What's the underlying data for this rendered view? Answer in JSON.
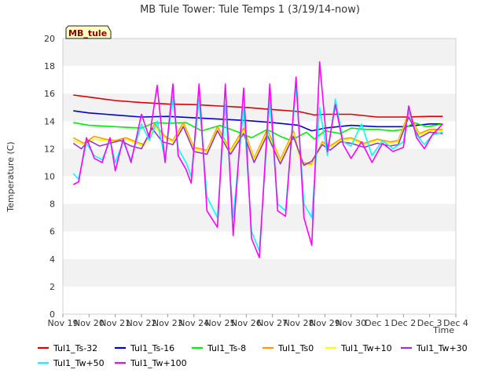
{
  "chart_data": {
    "type": "line",
    "title": "MB Tule Tower: Tule Temps 1 (3/19/14-now)",
    "xlabel": "Time",
    "ylabel": "Temperature (C)",
    "ylim": [
      0,
      20
    ],
    "yticks": [
      0,
      2,
      4,
      6,
      8,
      10,
      12,
      14,
      16,
      18,
      20
    ],
    "xlim": [
      0,
      15
    ],
    "xtick_labels": [
      "Nov 19",
      "Nov 20",
      "Nov 21",
      "Nov 22",
      "Nov 23",
      "Nov 24",
      "Nov 25",
      "Nov 26",
      "Nov 27",
      "Nov 28",
      "Nov 29",
      "Nov 30",
      "Dec 1",
      "Dec 2",
      "Dec 3",
      "Dec 4"
    ],
    "badge": "MB_tule",
    "grid": "horizontal bands",
    "legend_position": "bottom",
    "series": [
      {
        "name": "Tul1_Ts-32",
        "color": "#dd0000",
        "x": [
          0.4,
          1,
          2,
          3,
          4,
          5,
          6,
          7,
          8,
          9,
          9.6,
          10,
          11,
          12,
          13,
          14,
          14.5
        ],
        "y": [
          15.9,
          15.75,
          15.5,
          15.35,
          15.25,
          15.2,
          15.1,
          15.0,
          14.85,
          14.7,
          14.45,
          14.5,
          14.5,
          14.3,
          14.3,
          14.35,
          14.35
        ]
      },
      {
        "name": "Tul1_Ts-16",
        "color": "#0000cc",
        "x": [
          0.4,
          1,
          2,
          3,
          4,
          5,
          6,
          7,
          8,
          9,
          9.5,
          10,
          11,
          12,
          13,
          14,
          14.5
        ],
        "y": [
          14.75,
          14.6,
          14.45,
          14.3,
          14.35,
          14.25,
          14.15,
          14.05,
          13.9,
          13.7,
          13.3,
          13.5,
          13.7,
          13.6,
          13.6,
          13.8,
          13.8
        ]
      },
      {
        "name": "Tul1_Ts-8",
        "color": "#00ee00",
        "x": [
          0.4,
          1,
          2,
          2.5,
          3,
          3.5,
          4,
          4.7,
          5.3,
          6,
          6.7,
          7.2,
          7.8,
          8.3,
          8.7,
          9.3,
          9.6,
          10,
          10.6,
          11,
          11.6,
          12,
          12.6,
          13,
          13.4,
          13.9,
          14.5
        ],
        "y": [
          13.9,
          13.7,
          13.6,
          13.55,
          13.5,
          13.9,
          13.85,
          13.9,
          13.3,
          13.7,
          13.2,
          12.8,
          13.4,
          12.9,
          12.6,
          13.2,
          12.7,
          13.3,
          13.1,
          13.5,
          13.4,
          13.4,
          13.3,
          13.4,
          13.9,
          13.6,
          13.8
        ]
      },
      {
        "name": "Tul1_Ts0",
        "color": "#ff9900",
        "x": [
          0.4,
          0.8,
          1.2,
          1.6,
          2,
          2.4,
          2.8,
          3.1,
          3.5,
          3.9,
          4.2,
          4.6,
          5.0,
          5.5,
          5.9,
          6.4,
          6.9,
          7.3,
          7.8,
          8.3,
          8.8,
          9.1,
          9.5,
          9.9,
          10.2,
          10.6,
          11,
          11.5,
          12,
          12.5,
          12.8,
          13.2,
          13.6,
          14,
          14.5
        ],
        "y": [
          12.8,
          12.4,
          12.9,
          12.7,
          12.6,
          12.8,
          12.5,
          12.3,
          13.8,
          12.9,
          12.6,
          13.9,
          12.1,
          11.9,
          13.6,
          11.9,
          13.5,
          11.3,
          13.4,
          11.2,
          13.3,
          11.0,
          10.9,
          12.5,
          12.2,
          12.7,
          12.8,
          12.4,
          12.7,
          12.5,
          12.6,
          14.6,
          13.1,
          13.4,
          13.4
        ]
      },
      {
        "name": "Tul1_Tw+10",
        "color": "#ffff00",
        "x": [
          0.4,
          0.8,
          1.2,
          1.6,
          2,
          2.4,
          2.8,
          3.1,
          3.5,
          3.9,
          4.2,
          4.6,
          5.0,
          5.5,
          5.9,
          6.4,
          6.9,
          7.3,
          7.8,
          8.3,
          8.8,
          9.1,
          9.5,
          9.9,
          10.2,
          10.6,
          11,
          11.5,
          12,
          12.5,
          12.8,
          13.2,
          13.6,
          14,
          14.5
        ],
        "y": [
          12.6,
          12.3,
          12.7,
          12.6,
          12.5,
          12.7,
          12.4,
          12.2,
          13.6,
          12.8,
          12.5,
          13.7,
          12.0,
          11.8,
          13.4,
          11.8,
          13.3,
          11.2,
          13.2,
          11.1,
          13.1,
          10.9,
          10.8,
          12.4,
          12.1,
          12.6,
          12.7,
          12.3,
          12.6,
          12.4,
          12.5,
          14.4,
          13.0,
          13.3,
          13.3
        ]
      },
      {
        "name": "Tul1_Tw+30",
        "color": "#9933cc",
        "x": [
          0.4,
          0.7,
          1.0,
          1.4,
          1.8,
          2.2,
          2.6,
          3.0,
          3.4,
          3.8,
          4.2,
          4.6,
          5.0,
          5.5,
          5.9,
          6.4,
          6.9,
          7.3,
          7.8,
          8.3,
          8.8,
          9.2,
          9.5,
          9.9,
          10.2,
          10.6,
          11,
          11.5,
          12,
          12.5,
          12.8,
          13.2,
          13.6,
          14,
          14.5
        ],
        "y": [
          12.4,
          12.0,
          12.6,
          12.2,
          12.4,
          12.6,
          12.2,
          12.0,
          13.5,
          12.5,
          12.3,
          13.6,
          11.8,
          11.6,
          13.3,
          11.6,
          13.1,
          11.0,
          13.0,
          10.9,
          12.9,
          10.8,
          11.1,
          12.3,
          11.9,
          12.5,
          12.4,
          12.1,
          12.4,
          12.2,
          12.3,
          14.3,
          12.8,
          13.2,
          13.1
        ]
      },
      {
        "name": "Tul1_Tw+50",
        "color": "#00ffff",
        "x": [
          0.4,
          0.6,
          0.9,
          1.2,
          1.5,
          1.8,
          2.0,
          2.3,
          2.6,
          3.0,
          3.3,
          3.6,
          3.9,
          4.2,
          4.4,
          4.7,
          4.9,
          5.2,
          5.5,
          5.9,
          6.2,
          6.5,
          6.9,
          7.2,
          7.5,
          7.9,
          8.2,
          8.5,
          8.9,
          9.2,
          9.5,
          9.8,
          10.1,
          10.4,
          10.7,
          11.0,
          11.4,
          11.8,
          12.2,
          12.6,
          13.0,
          13.2,
          13.5,
          13.8,
          14.1,
          14.5
        ],
        "y": [
          10.2,
          9.8,
          12.4,
          11.5,
          11.2,
          12.6,
          11.0,
          12.5,
          11.2,
          13.8,
          12.6,
          14.0,
          11.2,
          15.8,
          12.0,
          11.0,
          10.0,
          15.6,
          8.5,
          7.0,
          15.2,
          7.0,
          15.0,
          6.0,
          4.6,
          15.6,
          8.0,
          7.5,
          16.6,
          8.0,
          7.0,
          15.0,
          11.5,
          15.6,
          12.5,
          12.2,
          13.8,
          11.5,
          12.6,
          12.0,
          12.5,
          14.8,
          13.0,
          12.3,
          13.0,
          13.2
        ]
      },
      {
        "name": "Tul1_Tw+100",
        "color": "#ff00ff",
        "x": [
          0.4,
          0.6,
          0.9,
          1.2,
          1.5,
          1.8,
          2.0,
          2.3,
          2.6,
          3.0,
          3.3,
          3.6,
          3.9,
          4.2,
          4.4,
          4.7,
          4.9,
          5.2,
          5.5,
          5.9,
          6.2,
          6.5,
          6.9,
          7.2,
          7.5,
          7.9,
          8.2,
          8.5,
          8.9,
          9.2,
          9.5,
          9.8,
          10.1,
          10.4,
          10.7,
          11.0,
          11.4,
          11.8,
          12.2,
          12.6,
          13.0,
          13.2,
          13.5,
          13.8,
          14.1,
          14.5
        ],
        "y": [
          9.4,
          9.6,
          12.8,
          11.3,
          11.0,
          12.8,
          10.4,
          12.7,
          11.0,
          14.5,
          12.8,
          16.6,
          11.0,
          16.7,
          11.5,
          10.5,
          9.5,
          16.7,
          7.5,
          6.3,
          16.7,
          5.7,
          16.4,
          5.5,
          4.1,
          16.7,
          7.5,
          7.1,
          17.2,
          7.0,
          5.0,
          18.3,
          11.8,
          15.2,
          12.3,
          11.3,
          12.5,
          11.0,
          12.4,
          11.8,
          12.1,
          15.1,
          12.8,
          12.0,
          13.0,
          13.8
        ]
      }
    ]
  }
}
